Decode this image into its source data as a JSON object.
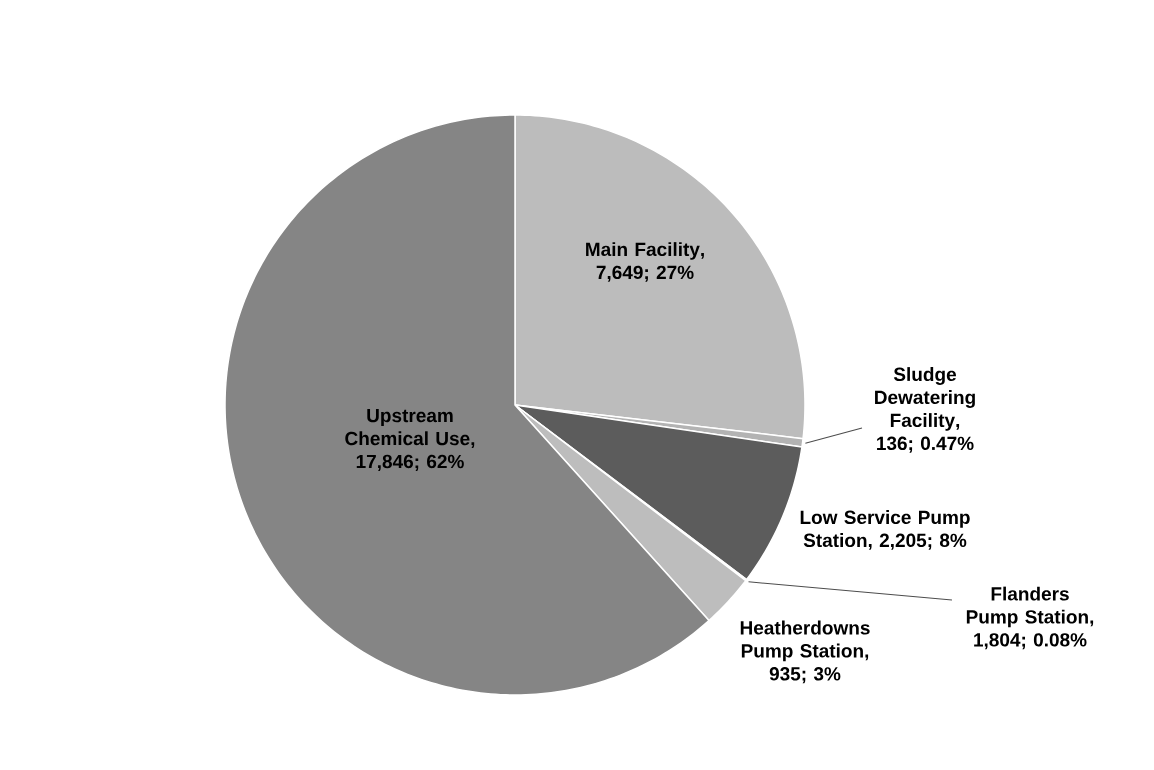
{
  "chart_data": {
    "type": "pie",
    "categories": [
      "Main Facility",
      "Sludge Dewatering Facility",
      "Low Service Pump Station",
      "Flanders Pump Station",
      "Heatherdowns Pump Station",
      "Upstream Chemical Use"
    ],
    "values": [
      27,
      0.47,
      8,
      0.08,
      3,
      62
    ],
    "value_labels": [
      ", 7,649; 27%",
      ", 136; 0.47%",
      ", 2,205; 8%",
      ", 1,804; 0.08%",
      ", 935; 3%",
      ", 17,846; 62%"
    ],
    "colors": [
      "#bcbcbc",
      "#b3b3b3",
      "#5c5c5c",
      "#101010",
      "#bdbdbd",
      "#858585"
    ]
  }
}
